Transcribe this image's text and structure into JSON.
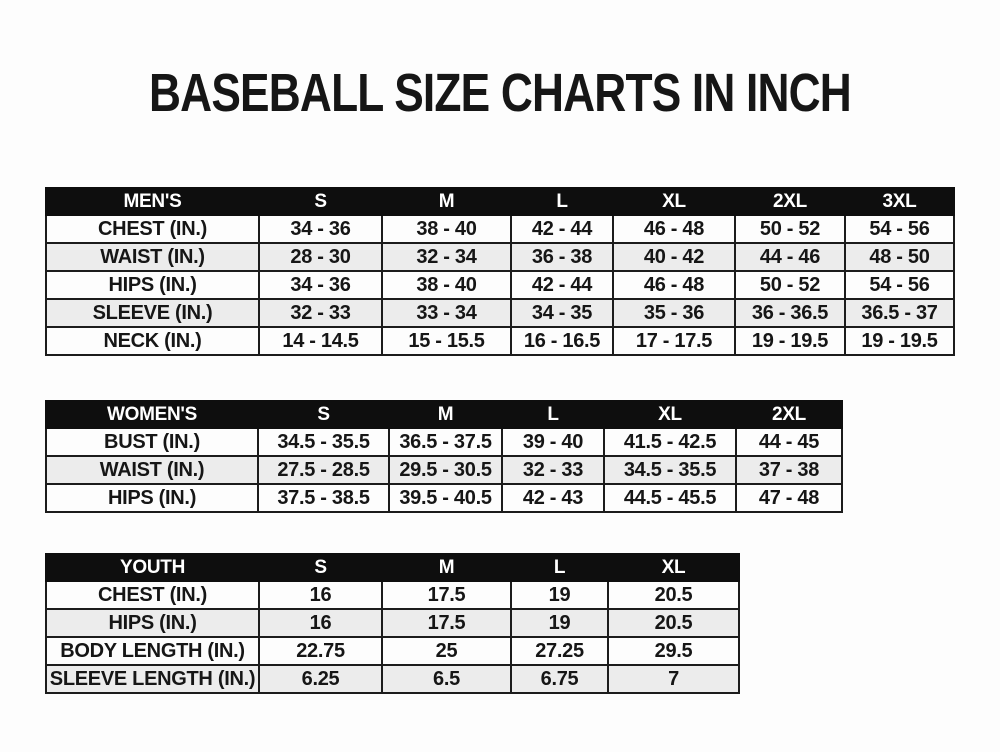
{
  "page": {
    "title": "BASEBALL SIZE CHARTS IN INCH"
  },
  "colors": {
    "header_bg": "#0e0e0e",
    "header_text": "#ffffff",
    "stripe_bg": "#ececec",
    "row_bg": "#fdfdfd",
    "border": "#1c1c1c",
    "text": "#161616"
  },
  "tables": [
    {
      "name": "mens",
      "header": [
        "MEN'S",
        "S",
        "M",
        "L",
        "XL",
        "2XL",
        "3XL"
      ],
      "rows": [
        [
          "CHEST (IN.)",
          "34 - 36",
          "38 - 40",
          "42 - 44",
          "46 - 48",
          "50 - 52",
          "54 - 56"
        ],
        [
          "WAIST (IN.)",
          "28 - 30",
          "32 - 34",
          "36 - 38",
          "40 - 42",
          "44 - 46",
          "48 - 50"
        ],
        [
          "HIPS (IN.)",
          "34 - 36",
          "38 - 40",
          "42 - 44",
          "46 - 48",
          "50 - 52",
          "54 - 56"
        ],
        [
          "SLEEVE (IN.)",
          "32 - 33",
          "33 - 34",
          "34 - 35",
          "35 - 36",
          "36 - 36.5",
          "36.5 - 37"
        ],
        [
          "NECK (IN.)",
          "14 - 14.5",
          "15 - 15.5",
          "16 - 16.5",
          "17 - 17.5",
          "19 - 19.5",
          "19 - 19.5"
        ]
      ]
    },
    {
      "name": "womens",
      "header": [
        "WOMEN'S",
        "S",
        "M",
        "L",
        "XL",
        "2XL"
      ],
      "rows": [
        [
          "BUST (IN.)",
          "34.5 - 35.5",
          "36.5 - 37.5",
          "39 - 40",
          "41.5 - 42.5",
          "44 - 45"
        ],
        [
          "WAIST (IN.)",
          "27.5 - 28.5",
          "29.5 - 30.5",
          "32 - 33",
          "34.5 - 35.5",
          "37 - 38"
        ],
        [
          "HIPS (IN.)",
          "37.5 - 38.5",
          "39.5 - 40.5",
          "42 - 43",
          "44.5 - 45.5",
          "47 - 48"
        ]
      ]
    },
    {
      "name": "youth",
      "header": [
        "YOUTH",
        "S",
        "M",
        "L",
        "XL"
      ],
      "rows": [
        [
          "CHEST (IN.)",
          "16",
          "17.5",
          "19",
          "20.5"
        ],
        [
          "HIPS (IN.)",
          "16",
          "17.5",
          "19",
          "20.5"
        ],
        [
          "BODY LENGTH (IN.)",
          "22.75",
          "25",
          "27.25",
          "29.5"
        ],
        [
          "SLEEVE LENGTH (IN.)",
          "6.25",
          "6.5",
          "6.75",
          "7"
        ]
      ]
    }
  ]
}
